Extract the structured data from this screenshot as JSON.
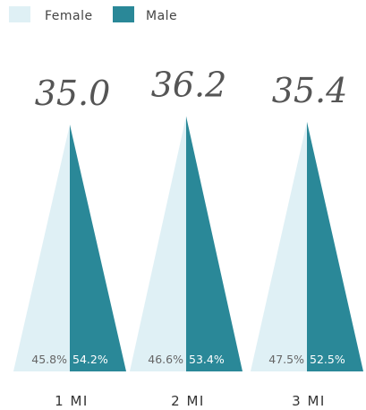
{
  "chart_data": {
    "type": "bar",
    "legend": [
      {
        "name": "Female",
        "color": "#dff0f5"
      },
      {
        "name": "Male",
        "color": "#2a8898"
      }
    ],
    "legend_position": "top-left",
    "categories": [
      "1 MI",
      "2 MI",
      "3 MI"
    ],
    "values": [
      35.0,
      36.2,
      35.4
    ],
    "value_labels": [
      "35.0",
      "36.2",
      "35.4"
    ],
    "series": [
      {
        "name": "Female",
        "values": [
          45.8,
          46.6,
          47.5
        ],
        "labels": [
          "45.8%",
          "46.6%",
          "47.5%"
        ]
      },
      {
        "name": "Male",
        "values": [
          54.2,
          53.4,
          52.5
        ],
        "labels": [
          "54.2%",
          "53.4%",
          "52.5%"
        ]
      }
    ],
    "ylim": [
      0,
      37.5
    ],
    "grid": false
  }
}
